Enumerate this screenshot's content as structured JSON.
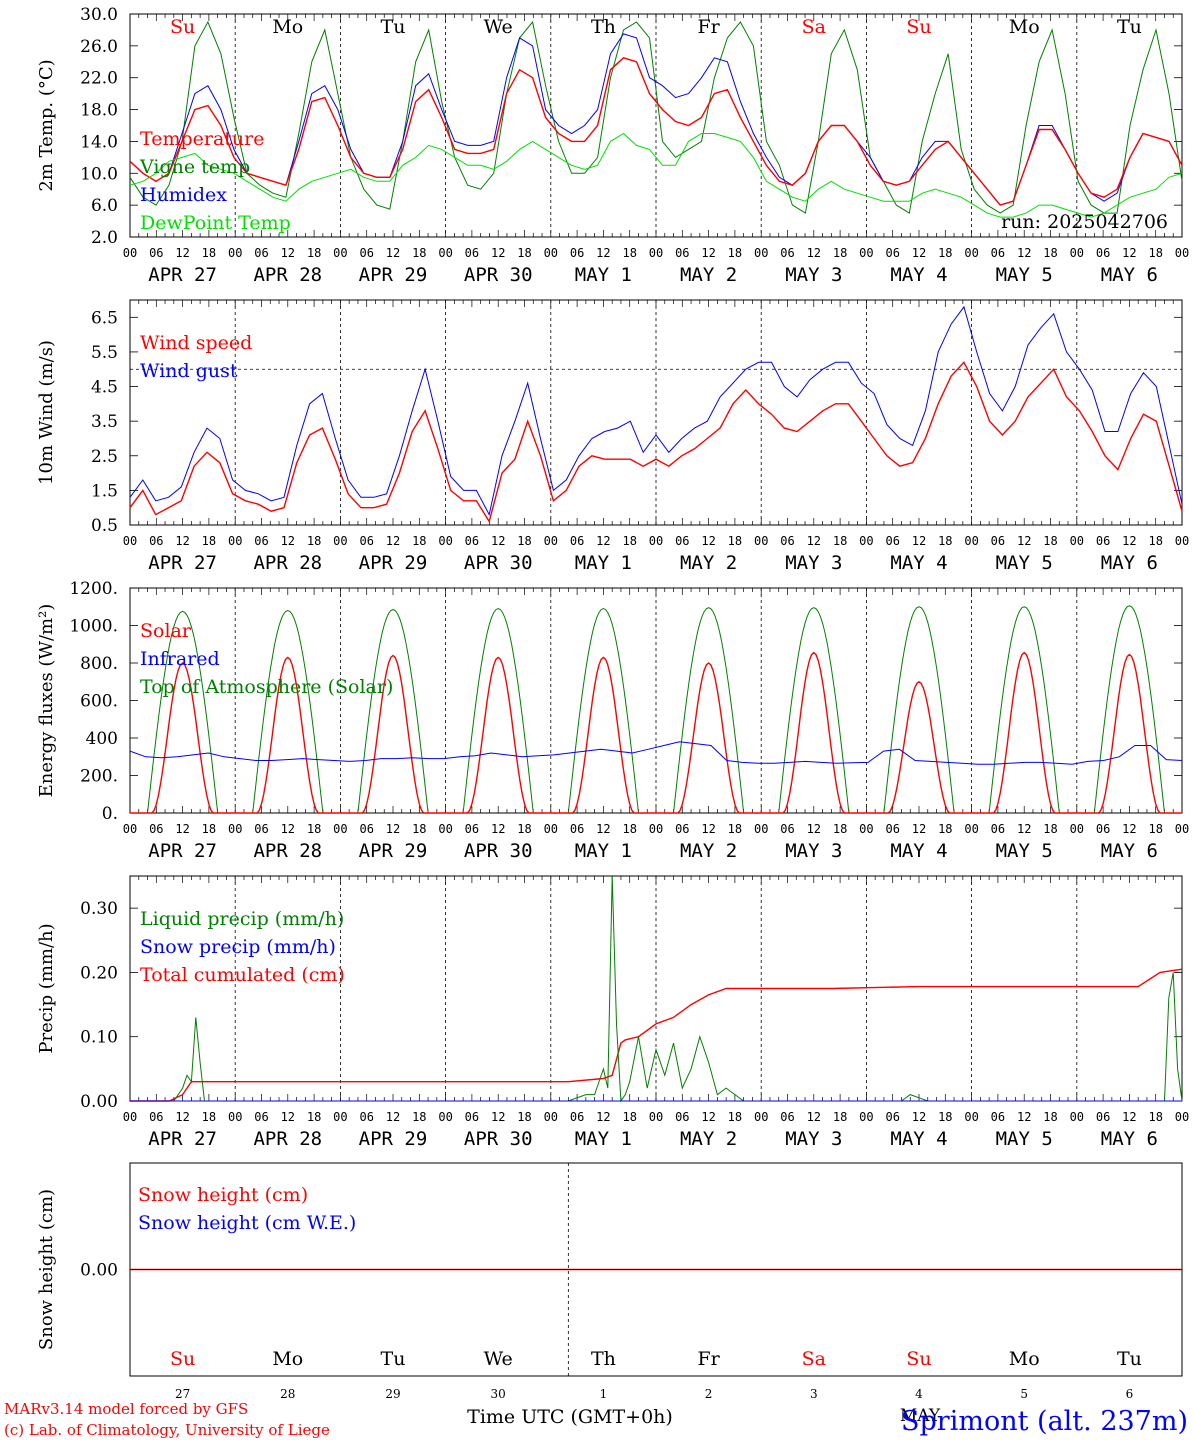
{
  "colors": {
    "red": "#ff0000",
    "blue": "#0000ff",
    "green": "#008000",
    "lightgreen": "#00e000",
    "black": "#000000",
    "grid": "#000000"
  },
  "run_label": "run: 2025042706",
  "hour_ticks": [
    "00",
    "06",
    "12",
    "18"
  ],
  "date_labels": [
    "APR 27",
    "APR 28",
    "APR 29",
    "APR 30",
    "MAY  1",
    "MAY  2",
    "MAY  3",
    "MAY  4",
    "MAY  5",
    "MAY  6"
  ],
  "weekdays": [
    {
      "label": "Su",
      "weekend": true
    },
    {
      "label": "Mo",
      "weekend": false
    },
    {
      "label": "Tu",
      "weekend": false
    },
    {
      "label": "We",
      "weekend": false
    },
    {
      "label": "Th",
      "weekend": false
    },
    {
      "label": "Fr",
      "weekend": false
    },
    {
      "label": "Sa",
      "weekend": true
    },
    {
      "label": "Su",
      "weekend": true
    },
    {
      "label": "Mo",
      "weekend": false
    },
    {
      "label": "Tu",
      "weekend": false
    }
  ],
  "footer": {
    "day_numbers": [
      "27",
      "28",
      "29",
      "30",
      "1",
      "2",
      "3",
      "4",
      "5",
      "6"
    ],
    "month_label": "MAY",
    "xlabel": "Time UTC (GMT+0h)",
    "credit1": "MARv3.14 model forced by GFS",
    "credit2": "(c) Lab. of Climatology, University of Liege",
    "station": "Sprimont (alt. 237m)"
  },
  "chart_data": [
    {
      "type": "line",
      "ylabel": "2m Temp. (°C)",
      "ylim": [
        2,
        30
      ],
      "yticks": [
        "2.0",
        "6.0",
        "10.0",
        "14.0",
        "18.0",
        "22.0",
        "26.0",
        "30.0"
      ],
      "legend": [
        {
          "name": "Temperature",
          "color": "#ff0000"
        },
        {
          "name": "Vigne temp",
          "color": "#008000"
        },
        {
          "name": "Humidex",
          "color": "#0000ff"
        },
        {
          "name": "DewPoint Temp",
          "color": "#00e000"
        }
      ],
      "series": [
        {
          "name": "Vigne temp",
          "color": "#008000",
          "values": [
            9.5,
            7,
            6,
            8.5,
            14,
            26,
            29,
            25,
            17,
            10,
            8.5,
            7.5,
            7,
            15,
            24,
            28,
            20,
            12,
            8,
            6,
            5.5,
            14,
            24,
            28,
            19,
            12,
            8.5,
            8,
            10,
            20,
            27,
            29,
            21,
            14,
            10,
            10,
            12,
            22,
            28,
            29,
            27,
            14,
            12,
            13,
            14,
            22,
            27,
            29,
            26,
            14,
            11,
            6,
            5,
            14,
            25,
            28,
            23,
            12,
            9,
            6,
            5,
            14,
            20,
            25,
            13,
            8,
            6,
            5,
            6,
            16,
            24,
            28,
            20,
            9,
            6,
            5,
            5,
            16,
            23,
            28,
            20,
            9
          ]
        },
        {
          "name": "Humidex",
          "color": "#0000ff",
          "values": [
            11.5,
            10,
            9,
            10,
            15,
            20,
            21,
            18,
            13,
            10,
            9.5,
            9,
            8.5,
            14,
            20,
            21,
            18,
            13,
            10,
            9.5,
            9.5,
            14,
            21,
            22.5,
            18,
            14,
            13.5,
            13.5,
            14,
            22,
            27,
            26,
            18,
            16,
            15,
            16,
            18,
            25,
            27.5,
            27,
            22,
            21,
            19.5,
            20,
            22,
            24.5,
            24,
            19,
            15,
            12,
            9.5,
            8.5,
            10,
            14,
            16,
            16,
            14,
            12,
            9,
            8.5,
            9,
            12,
            14,
            14,
            12,
            10,
            8,
            6,
            6.5,
            11,
            16,
            16,
            13,
            10,
            7.5,
            6.5,
            7.5,
            12,
            15,
            14.5,
            14,
            11
          ]
        },
        {
          "name": "Temperature",
          "color": "#ff0000",
          "values": [
            11.5,
            10,
            9,
            10,
            14,
            18,
            18.5,
            16,
            12,
            10,
            9.5,
            9,
            8.5,
            13,
            19,
            19.5,
            16,
            12,
            10,
            9.5,
            9.5,
            13,
            19,
            20.5,
            17,
            13,
            12.5,
            12.5,
            13,
            20,
            23,
            22,
            17,
            15,
            14,
            14,
            16,
            23,
            24.5,
            24,
            20,
            18,
            16.5,
            16,
            17,
            20,
            20.5,
            17,
            14,
            11,
            9,
            8.5,
            10,
            14,
            16,
            16,
            14,
            11,
            9,
            8.5,
            9,
            11,
            13,
            14,
            12,
            10,
            8,
            6,
            6.5,
            11,
            15.5,
            15.5,
            13,
            10,
            7.5,
            7,
            8,
            12,
            15,
            14.5,
            14,
            11
          ]
        },
        {
          "name": "DewPoint Temp",
          "color": "#00e000",
          "values": [
            8.5,
            9,
            10,
            11.5,
            12,
            12.5,
            11,
            10.5,
            10,
            9,
            8,
            7,
            6.5,
            8,
            9,
            9.5,
            10,
            10.5,
            9.5,
            9,
            9,
            11,
            12,
            13.5,
            13,
            12,
            11,
            11,
            10.5,
            11.5,
            13,
            14,
            13,
            12,
            11,
            10.5,
            11,
            14,
            15,
            13.5,
            13,
            11,
            11,
            14,
            15,
            15,
            14.5,
            14,
            12,
            9,
            8,
            7,
            6.5,
            8,
            9,
            8,
            7.5,
            7,
            6.5,
            6.5,
            6.5,
            7.5,
            8,
            7.5,
            7,
            6,
            5,
            4.5,
            4.5,
            5,
            6,
            6,
            5.5,
            5,
            4.5,
            5,
            6,
            7,
            7.5,
            8,
            9.5,
            10
          ]
        }
      ]
    },
    {
      "type": "line",
      "ylabel": "10m Wind (m/s)",
      "ylim": [
        0.5,
        7
      ],
      "yticks": [
        "0.5",
        "1.5",
        "2.5",
        "3.5",
        "4.5",
        "5.5",
        "6.5"
      ],
      "reference_line": 5.0,
      "legend": [
        {
          "name": "Wind speed",
          "color": "#ff0000"
        },
        {
          "name": "Wind gust",
          "color": "#0000ff"
        }
      ],
      "series": [
        {
          "name": "Wind gust",
          "color": "#0000ff",
          "values": [
            1.3,
            1.8,
            1.2,
            1.3,
            1.6,
            2.6,
            3.3,
            3.0,
            1.8,
            1.5,
            1.4,
            1.2,
            1.3,
            2.8,
            4.0,
            4.3,
            3.0,
            1.8,
            1.3,
            1.3,
            1.4,
            2.5,
            3.8,
            5.0,
            3.5,
            1.9,
            1.5,
            1.5,
            0.8,
            2.5,
            3.5,
            4.6,
            3.0,
            1.5,
            1.8,
            2.5,
            3.0,
            3.2,
            3.3,
            3.5,
            2.6,
            3.1,
            2.6,
            3.0,
            3.3,
            3.5,
            4.2,
            4.6,
            5.0,
            5.2,
            5.2,
            4.5,
            4.2,
            4.7,
            5.0,
            5.2,
            5.2,
            4.6,
            4.3,
            3.4,
            3.0,
            2.8,
            3.8,
            5.5,
            6.3,
            6.8,
            5.5,
            4.3,
            3.8,
            4.5,
            5.7,
            6.2,
            6.6,
            5.5,
            5.0,
            4.4,
            3.2,
            3.2,
            4.3,
            4.9,
            4.5,
            2.8,
            1.1
          ]
        },
        {
          "name": "Wind speed",
          "color": "#ff0000",
          "values": [
            1.0,
            1.5,
            0.8,
            1.0,
            1.2,
            2.2,
            2.6,
            2.3,
            1.4,
            1.2,
            1.1,
            0.9,
            1.0,
            2.3,
            3.1,
            3.3,
            2.4,
            1.4,
            1.0,
            1.0,
            1.1,
            2.0,
            3.2,
            3.8,
            2.7,
            1.5,
            1.2,
            1.2,
            0.6,
            2.0,
            2.4,
            3.5,
            2.5,
            1.2,
            1.5,
            2.2,
            2.5,
            2.4,
            2.4,
            2.4,
            2.2,
            2.4,
            2.2,
            2.5,
            2.7,
            3.0,
            3.3,
            4.0,
            4.4,
            4.0,
            3.7,
            3.3,
            3.2,
            3.5,
            3.8,
            4.0,
            4.0,
            3.5,
            3.0,
            2.5,
            2.2,
            2.3,
            3.0,
            4.0,
            4.8,
            5.2,
            4.5,
            3.5,
            3.1,
            3.5,
            4.2,
            4.6,
            5.0,
            4.2,
            3.8,
            3.2,
            2.5,
            2.1,
            3.0,
            3.7,
            3.5,
            2.2,
            0.9
          ]
        }
      ]
    },
    {
      "type": "line",
      "ylabel": "Energy fluxes (W/m²)",
      "ylim": [
        0,
        1200
      ],
      "yticks": [
        "0.",
        "200.",
        "400",
        "600.",
        "800.",
        "1000.",
        "1200."
      ],
      "legend": [
        {
          "name": "Solar",
          "color": "#ff0000"
        },
        {
          "name": "Infrared",
          "color": "#0000ff"
        },
        {
          "name": "Top of Atmosphere (Solar)",
          "color": "#008000"
        }
      ],
      "days": [
        {
          "toa": 1075,
          "solar": 800
        },
        {
          "toa": 1080,
          "solar": 830
        },
        {
          "toa": 1085,
          "solar": 840
        },
        {
          "toa": 1090,
          "solar": 830
        },
        {
          "toa": 1090,
          "solar": 830
        },
        {
          "toa": 1095,
          "solar": 800
        },
        {
          "toa": 1095,
          "solar": 855
        },
        {
          "toa": 1100,
          "solar": 700
        },
        {
          "toa": 1100,
          "solar": 855
        },
        {
          "toa": 1105,
          "solar": 845
        }
      ],
      "series": [
        {
          "name": "Infrared",
          "color": "#0000ff",
          "values": [
            330,
            300,
            295,
            300,
            310,
            320,
            300,
            290,
            280,
            280,
            285,
            290,
            285,
            280,
            275,
            280,
            290,
            290,
            295,
            290,
            290,
            300,
            305,
            320,
            310,
            300,
            305,
            310,
            320,
            330,
            340,
            330,
            320,
            340,
            360,
            380,
            370,
            360,
            280,
            270,
            265,
            265,
            270,
            275,
            270,
            265,
            268,
            270,
            330,
            340,
            280,
            275,
            270,
            265,
            260,
            260,
            265,
            270,
            270,
            265,
            260,
            275,
            280,
            300,
            360,
            360,
            285,
            280
          ]
        }
      ]
    },
    {
      "type": "line",
      "ylabel": "Precip (mm/h)",
      "ylim": [
        0,
        0.35
      ],
      "yticks": [
        "0.00",
        "0.10",
        "0.20",
        "0.30"
      ],
      "legend": [
        {
          "name": "Liquid precip (mm/h)",
          "color": "#008000"
        },
        {
          "name": "Snow precip (mm/h)",
          "color": "#0000ff"
        },
        {
          "name": "Total cumulated (cm)",
          "color": "#ff0000"
        }
      ],
      "series": [
        {
          "name": "Total cumulated (cm)",
          "color": "#ff0000",
          "x": [
            0,
            9,
            12,
            14,
            16,
            100,
            108,
            110,
            112,
            113,
            116,
            120,
            124,
            128,
            132,
            136,
            140,
            144,
            148,
            160,
            180,
            185,
            200,
            230,
            235,
            240
          ],
          "values": [
            0,
            0,
            0.01,
            0.03,
            0.03,
            0.03,
            0.035,
            0.04,
            0.09,
            0.095,
            0.1,
            0.12,
            0.13,
            0.15,
            0.165,
            0.175,
            0.175,
            0.175,
            0.175,
            0.175,
            0.178,
            0.178,
            0.178,
            0.178,
            0.2,
            0.205
          ]
        },
        {
          "name": "Liquid precip (mm/h)",
          "color": "#008000",
          "x": [
            0,
            10,
            12,
            13,
            14,
            15,
            16,
            17,
            100,
            104,
            106,
            108,
            109,
            110,
            111,
            112,
            113,
            114,
            116,
            118,
            120,
            122,
            124,
            126,
            128,
            130,
            132,
            134,
            136,
            138,
            140,
            144,
            176,
            178,
            180,
            182,
            236,
            237,
            238,
            239,
            240
          ],
          "values": [
            0,
            0,
            0.02,
            0.04,
            0.03,
            0.13,
            0.06,
            0,
            0,
            0.01,
            0.01,
            0.05,
            0.02,
            0.35,
            0.12,
            0,
            0.01,
            0.03,
            0.1,
            0.02,
            0.08,
            0.04,
            0.09,
            0.02,
            0.05,
            0.1,
            0.06,
            0.01,
            0.02,
            0.01,
            0,
            0,
            0,
            0.01,
            0.005,
            0,
            0,
            0.16,
            0.2,
            0.05,
            0
          ]
        },
        {
          "name": "Snow precip (mm/h)",
          "color": "#0000ff",
          "values": [
            0
          ]
        }
      ]
    },
    {
      "type": "line",
      "ylabel": "Snow height (cm)",
      "ylim": [
        -0.05,
        0.05
      ],
      "yticks": [
        "0.00"
      ],
      "legend": [
        {
          "name": "Snow height (cm)",
          "color": "#ff0000"
        },
        {
          "name": "Snow height (cm W.E.)",
          "color": "#0000ff"
        }
      ],
      "series": [
        {
          "name": "Snow height (cm)",
          "color": "#ff0000",
          "values": [
            0,
            0
          ]
        },
        {
          "name": "Snow height (cm W.E.)",
          "color": "#0000ff",
          "values": [
            0,
            0
          ]
        }
      ]
    }
  ]
}
